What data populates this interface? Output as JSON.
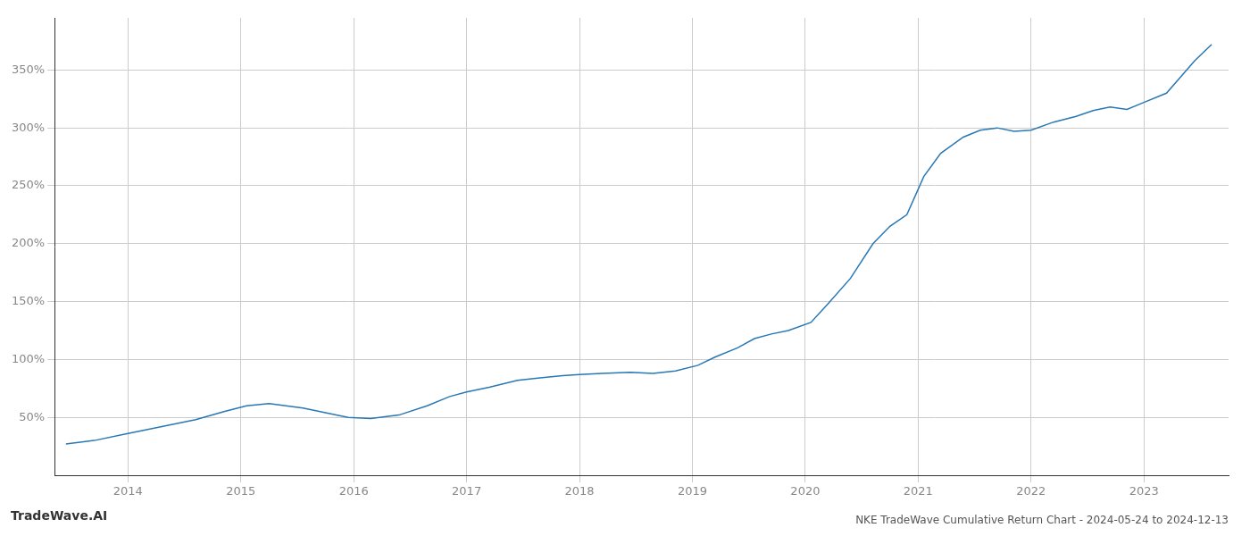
{
  "chart_data": {
    "type": "line",
    "title": "NKE TradeWave Cumulative Return Chart - 2024-05-24 to 2024-12-13",
    "annotations": [
      "TradeWave.AI"
    ],
    "color": "#2878b5",
    "x": [
      2013.45,
      2013.7,
      2014.0,
      2014.3,
      2014.6,
      2014.85,
      2015.05,
      2015.25,
      2015.55,
      2015.75,
      2015.95,
      2016.15,
      2016.4,
      2016.65,
      2016.85,
      2017.0,
      2017.2,
      2017.45,
      2017.65,
      2017.85,
      2018.0,
      2018.2,
      2018.45,
      2018.65,
      2018.85,
      2019.05,
      2019.2,
      2019.4,
      2019.55,
      2019.7,
      2019.85,
      2020.05,
      2020.2,
      2020.4,
      2020.6,
      2020.75,
      2020.9,
      2021.05,
      2021.2,
      2021.4,
      2021.55,
      2021.7,
      2021.85,
      2022.0,
      2022.2,
      2022.4,
      2022.55,
      2022.7,
      2022.85,
      2023.0,
      2023.2,
      2023.45,
      2023.6
    ],
    "values": [
      27,
      30,
      36,
      42,
      48,
      55,
      60,
      62,
      58,
      54,
      50,
      49,
      52,
      60,
      68,
      72,
      76,
      82,
      84,
      86,
      87,
      88,
      89,
      88,
      90,
      95,
      102,
      110,
      118,
      122,
      125,
      132,
      148,
      170,
      200,
      215,
      225,
      258,
      278,
      292,
      298,
      300,
      297,
      298,
      305,
      310,
      315,
      318,
      316,
      322,
      330,
      358,
      372
    ],
    "xlim": [
      2013.35,
      2023.75
    ],
    "ylim": [
      0,
      395
    ],
    "xticks": [
      2014,
      2015,
      2016,
      2017,
      2018,
      2019,
      2020,
      2021,
      2022,
      2023
    ],
    "yticks": [
      {
        "value": 50,
        "label": "50%"
      },
      {
        "value": 100,
        "label": "100%"
      },
      {
        "value": 150,
        "label": "150%"
      },
      {
        "value": 200,
        "label": "200%"
      },
      {
        "value": 250,
        "label": "250%"
      },
      {
        "value": 300,
        "label": "300%"
      },
      {
        "value": 350,
        "label": "350%"
      }
    ],
    "grid": true
  }
}
